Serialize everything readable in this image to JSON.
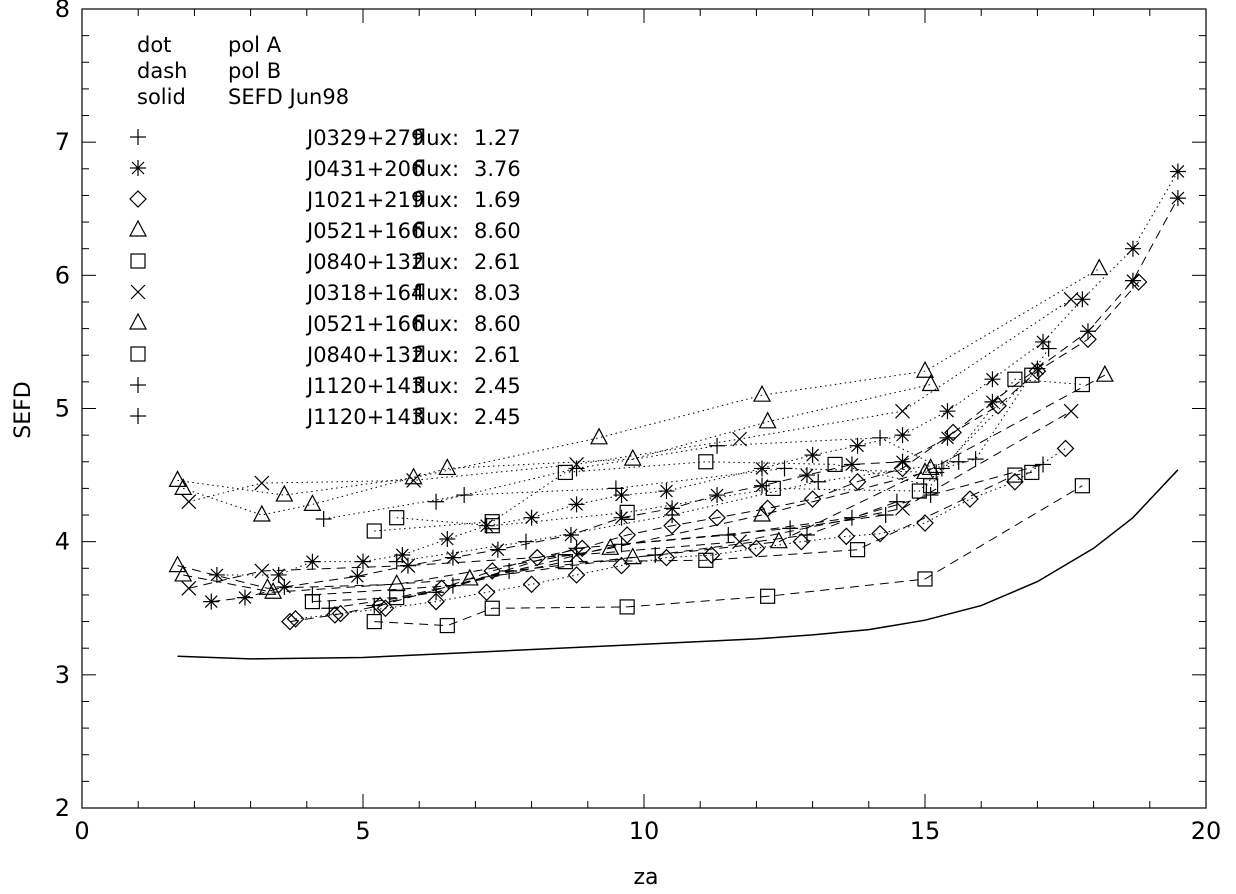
{
  "chart_data": {
    "type": "scatter",
    "title": "",
    "xlabel": "za",
    "ylabel": "SEFD",
    "xlim": [
      0,
      20
    ],
    "ylim": [
      2,
      8
    ],
    "x_ticks": [
      "0",
      "5",
      "10",
      "15",
      "20"
    ],
    "y_ticks": [
      "2",
      "3",
      "4",
      "5",
      "6",
      "7",
      "8"
    ],
    "grid": false,
    "legend_position": "top-left",
    "line_style_legend": [
      {
        "style": "dot",
        "label": "pol A"
      },
      {
        "style": "dash",
        "label": "pol B"
      },
      {
        "style": "solid",
        "label": "SEFD Jun98"
      }
    ],
    "sources": [
      {
        "marker": "plus",
        "name": "J0329+279",
        "flux_label": "flux:",
        "flux": "1.27",
        "pol_a": [
          [
            6.3,
            4.3
          ],
          [
            8.8,
            4.55
          ],
          [
            11.3,
            4.72
          ],
          [
            14.2,
            4.78
          ],
          [
            15.3,
            4.55
          ],
          [
            15.9,
            4.62
          ],
          [
            17.2,
            5.45
          ]
        ],
        "pol_b": [
          [
            4.4,
            3.5
          ],
          [
            6.3,
            3.62
          ],
          [
            8.8,
            3.95
          ],
          [
            11.5,
            4.05
          ],
          [
            13.7,
            4.18
          ],
          [
            15.1,
            4.35
          ],
          [
            17.1,
            4.58
          ]
        ]
      },
      {
        "marker": "asterisk",
        "name": "J0431+206",
        "flux_label": "flux:",
        "flux": "3.76",
        "pol_a": [
          [
            2.4,
            3.75
          ],
          [
            3.5,
            3.75
          ],
          [
            4.1,
            3.85
          ],
          [
            5.0,
            3.85
          ],
          [
            5.7,
            3.9
          ],
          [
            6.5,
            4.02
          ],
          [
            7.2,
            4.12
          ],
          [
            8.0,
            4.18
          ],
          [
            8.8,
            4.28
          ],
          [
            9.6,
            4.35
          ],
          [
            10.4,
            4.38
          ],
          [
            12.1,
            4.55
          ],
          [
            13.0,
            4.65
          ],
          [
            13.8,
            4.72
          ],
          [
            14.6,
            4.8
          ],
          [
            15.4,
            4.98
          ],
          [
            16.2,
            5.22
          ],
          [
            17.1,
            5.5
          ],
          [
            17.8,
            5.82
          ],
          [
            18.7,
            6.2
          ],
          [
            19.5,
            6.78
          ]
        ],
        "pol_b": [
          [
            2.3,
            3.55
          ],
          [
            2.9,
            3.58
          ],
          [
            3.6,
            3.66
          ],
          [
            4.9,
            3.74
          ],
          [
            5.8,
            3.82
          ],
          [
            6.6,
            3.88
          ],
          [
            7.4,
            3.94
          ],
          [
            8.7,
            4.05
          ],
          [
            9.6,
            4.18
          ],
          [
            10.5,
            4.25
          ],
          [
            11.3,
            4.35
          ],
          [
            12.1,
            4.42
          ],
          [
            12.9,
            4.5
          ],
          [
            13.7,
            4.58
          ],
          [
            14.6,
            4.6
          ],
          [
            15.4,
            4.78
          ],
          [
            16.2,
            5.05
          ],
          [
            17.0,
            5.3
          ],
          [
            17.9,
            5.58
          ],
          [
            18.7,
            5.96
          ],
          [
            19.5,
            6.58
          ]
        ]
      },
      {
        "marker": "diamond",
        "name": "J1021+219",
        "flux_label": "flux:",
        "flux": "1.69",
        "pol_a": [
          [
            3.8,
            3.42
          ],
          [
            4.6,
            3.46
          ],
          [
            5.4,
            3.5
          ],
          [
            6.3,
            3.55
          ],
          [
            7.2,
            3.62
          ],
          [
            8.0,
            3.68
          ],
          [
            8.8,
            3.75
          ],
          [
            9.6,
            3.82
          ],
          [
            10.4,
            3.88
          ],
          [
            11.2,
            3.9
          ],
          [
            12.0,
            3.95
          ],
          [
            12.8,
            4.0
          ],
          [
            13.6,
            4.04
          ],
          [
            14.2,
            4.06
          ],
          [
            15.0,
            4.14
          ],
          [
            15.8,
            4.32
          ],
          [
            16.6,
            4.45
          ],
          [
            17.5,
            4.7
          ]
        ],
        "pol_b": [
          [
            3.7,
            3.4
          ],
          [
            4.5,
            3.45
          ],
          [
            5.3,
            3.52
          ],
          [
            6.4,
            3.65
          ],
          [
            7.3,
            3.78
          ],
          [
            8.1,
            3.88
          ],
          [
            8.9,
            3.95
          ],
          [
            9.7,
            4.05
          ],
          [
            10.5,
            4.12
          ],
          [
            11.3,
            4.18
          ],
          [
            12.2,
            4.25
          ],
          [
            13.0,
            4.32
          ],
          [
            13.8,
            4.45
          ],
          [
            14.6,
            4.55
          ],
          [
            15.5,
            4.82
          ],
          [
            16.3,
            5.02
          ],
          [
            17.0,
            5.28
          ],
          [
            17.9,
            5.52
          ],
          [
            18.8,
            5.95
          ]
        ]
      },
      {
        "marker": "triangle",
        "name": "J0521+166",
        "flux_label": "flux:",
        "flux": "8.60",
        "pol_a": [
          [
            1.7,
            4.46
          ],
          [
            3.6,
            4.35
          ],
          [
            5.9,
            4.48
          ],
          [
            9.2,
            4.78
          ],
          [
            12.1,
            5.1
          ],
          [
            15.0,
            5.28
          ],
          [
            18.1,
            6.05
          ]
        ],
        "pol_b": [
          [
            1.7,
            3.82
          ],
          [
            3.3,
            3.65
          ],
          [
            5.6,
            3.68
          ],
          [
            9.4,
            3.95
          ],
          [
            12.1,
            4.2
          ],
          [
            15.0,
            4.52
          ],
          [
            18.2,
            5.25
          ]
        ]
      },
      {
        "marker": "square",
        "name": "J0840+132",
        "flux_label": "flux:",
        "flux": "2.61",
        "pol_a": [
          [
            5.2,
            4.08
          ],
          [
            7.3,
            4.15
          ],
          [
            8.6,
            4.52
          ],
          [
            11.1,
            4.6
          ],
          [
            13.4,
            4.58
          ],
          [
            15.1,
            4.42
          ],
          [
            16.6,
            5.22
          ],
          [
            17.8,
            5.18
          ]
        ],
        "pol_b": [
          [
            5.2,
            3.4
          ],
          [
            6.5,
            3.37
          ],
          [
            7.3,
            3.5
          ],
          [
            9.7,
            3.51
          ],
          [
            12.2,
            3.59
          ],
          [
            15.0,
            3.72
          ],
          [
            17.8,
            4.42
          ]
        ]
      },
      {
        "marker": "x",
        "name": "J0318+164",
        "flux_label": "flux:",
        "flux": "8.03",
        "pol_a": [
          [
            1.9,
            4.3
          ],
          [
            3.2,
            4.44
          ],
          [
            5.9,
            4.46
          ],
          [
            8.8,
            4.58
          ],
          [
            11.7,
            4.77
          ],
          [
            14.6,
            4.98
          ],
          [
            17.6,
            5.82
          ]
        ],
        "pol_b": [
          [
            1.9,
            3.65
          ],
          [
            3.2,
            3.78
          ],
          [
            5.8,
            3.82
          ],
          [
            8.8,
            3.9
          ],
          [
            11.7,
            4.0
          ],
          [
            14.6,
            4.25
          ],
          [
            17.6,
            4.98
          ]
        ]
      },
      {
        "marker": "triangle",
        "name": "J0521+166",
        "flux_label": "flux:",
        "flux": "8.60",
        "pol_a": [
          [
            1.8,
            4.4
          ],
          [
            3.2,
            4.2
          ],
          [
            4.1,
            4.28
          ],
          [
            6.5,
            4.55
          ],
          [
            9.8,
            4.62
          ],
          [
            12.2,
            4.9
          ],
          [
            15.1,
            5.18
          ]
        ],
        "pol_b": [
          [
            1.8,
            3.75
          ],
          [
            3.4,
            3.62
          ],
          [
            6.9,
            3.72
          ],
          [
            9.8,
            3.88
          ],
          [
            12.4,
            4.0
          ],
          [
            15.1,
            4.55
          ]
        ]
      },
      {
        "marker": "square",
        "name": "J0840+132",
        "flux_label": "flux:",
        "flux": "2.61",
        "pol_a": [
          [
            5.6,
            4.18
          ],
          [
            7.3,
            4.12
          ],
          [
            9.7,
            4.22
          ],
          [
            12.3,
            4.4
          ],
          [
            14.9,
            4.38
          ],
          [
            16.9,
            5.25
          ]
        ],
        "pol_b": [
          [
            4.1,
            3.55
          ],
          [
            5.6,
            3.58
          ],
          [
            8.6,
            3.85
          ],
          [
            11.1,
            3.86
          ],
          [
            13.8,
            3.94
          ],
          [
            16.6,
            4.5
          ],
          [
            16.9,
            4.52
          ]
        ]
      },
      {
        "marker": "plus",
        "name": "J1120+143",
        "flux_label": "flux:",
        "flux": "2.45",
        "pol_a": [
          [
            4.3,
            4.17
          ],
          [
            6.8,
            4.35
          ],
          [
            9.5,
            4.4
          ],
          [
            12.5,
            4.55
          ],
          [
            15.2,
            4.52
          ]
        ],
        "pol_b": [
          [
            4.1,
            3.6
          ],
          [
            6.6,
            3.67
          ],
          [
            9.6,
            3.98
          ],
          [
            12.6,
            4.1
          ],
          [
            14.3,
            4.2
          ]
        ]
      },
      {
        "marker": "plus",
        "name": "J1120+143",
        "flux_label": "flux:",
        "flux": "2.45",
        "pol_a": [
          [
            5.6,
            3.85
          ],
          [
            7.9,
            4.0
          ],
          [
            10.5,
            4.2
          ],
          [
            13.1,
            4.45
          ],
          [
            15.6,
            4.6
          ]
        ],
        "pol_b": [
          [
            5.2,
            3.52
          ],
          [
            7.6,
            3.78
          ],
          [
            10.2,
            3.9
          ],
          [
            12.9,
            4.05
          ],
          [
            14.5,
            4.3
          ]
        ]
      }
    ],
    "sefd_jun98": [
      [
        1.7,
        3.14
      ],
      [
        3.0,
        3.12
      ],
      [
        5.0,
        3.13
      ],
      [
        7.0,
        3.17
      ],
      [
        10.0,
        3.23
      ],
      [
        12.0,
        3.27
      ],
      [
        13.0,
        3.3
      ],
      [
        14.0,
        3.34
      ],
      [
        15.0,
        3.41
      ],
      [
        16.0,
        3.52
      ],
      [
        17.0,
        3.7
      ],
      [
        18.0,
        3.95
      ],
      [
        18.7,
        4.18
      ],
      [
        19.5,
        4.54
      ]
    ]
  }
}
